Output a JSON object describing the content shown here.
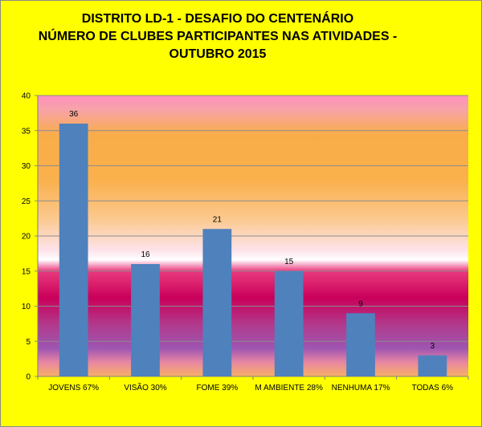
{
  "chart_data": {
    "type": "bar",
    "title_lines": [
      "DISTRITO LD-1 - DESAFIO DO CENTENÁRIO",
      "NÚMERO DE CLUBES PARTICIPANTES NAS ATIVIDADES -",
      "OUTUBRO 2015"
    ],
    "categories": [
      "JOVENS 67%",
      "VISÃO 30%",
      "FOME 39%",
      "M AMBIENTE 28%",
      "NENHUMA 17%",
      "TODAS 6%"
    ],
    "values": [
      36,
      16,
      21,
      15,
      9,
      3
    ],
    "data_labels": [
      "36",
      "16",
      "21",
      "15",
      "9",
      "3"
    ],
    "ylim": [
      0,
      40
    ],
    "yticks": [
      "0",
      "5",
      "10",
      "15",
      "20",
      "25",
      "30",
      "35",
      "40"
    ],
    "xlabel": "",
    "ylabel": "",
    "grid": true,
    "legend": false,
    "colors": {
      "page_background": "#ffff00",
      "bar": "#4f81bd",
      "gridline": "#8c8c8c"
    }
  }
}
